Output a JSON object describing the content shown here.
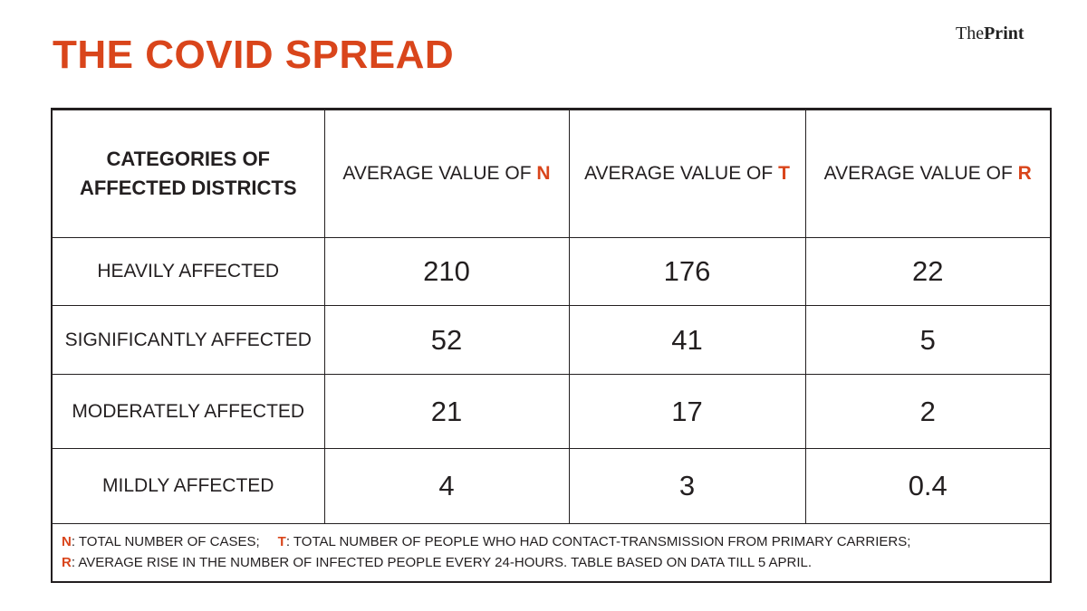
{
  "title": "THE COVID SPREAD",
  "brand": {
    "pre": "The",
    "main": "Print"
  },
  "table": {
    "header": [
      "CATEGORIES OF AFFECTED DISTRICTS",
      {
        "text": "AVERAGE VALUE OF",
        "letter": "N"
      },
      {
        "text": "AVERAGE VALUE OF",
        "letter": "T"
      },
      {
        "text": "AVERAGE VALUE OF",
        "letter": "R"
      }
    ],
    "rows": [
      [
        "HEAVILY AFFECTED",
        210,
        176,
        22
      ],
      [
        "SIGNIFICANTLY AFFECTED",
        52,
        41,
        5
      ],
      [
        "MODERATELY AFFECTED",
        21,
        17,
        2
      ],
      [
        "MILDLY AFFECTED",
        4,
        3,
        0.4
      ]
    ]
  },
  "footnote": [
    [
      {
        "key": "N",
        "text": ": TOTAL NUMBER OF CASES;"
      },
      {
        "key": "T",
        "text": ": TOTAL NUMBER OF PEOPLE WHO HAD CONTACT-TRANSMISSION FROM PRIMARY CARRIERS;"
      }
    ],
    [
      {
        "key": "R",
        "text": ": AVERAGE RISE IN THE NUMBER OF INFECTED PEOPLE EVERY 24-HOURS. TABLE BASED ON DATA TILL 5 APRIL."
      }
    ]
  ]
}
